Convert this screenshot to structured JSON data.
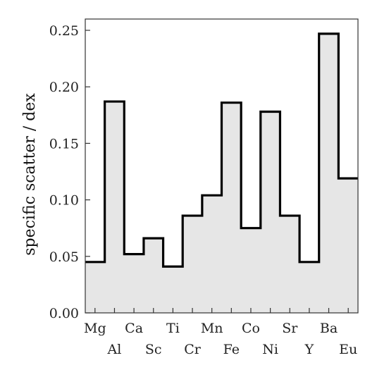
{
  "chart_data": {
    "type": "step",
    "categories": [
      "Mg",
      "Al",
      "Ca",
      "Sc",
      "Ti",
      "Cr",
      "Mn",
      "Fe",
      "Co",
      "Ni",
      "Sr",
      "Y",
      "Ba",
      "Eu"
    ],
    "values": [
      0.045,
      0.187,
      0.052,
      0.066,
      0.041,
      0.086,
      0.104,
      0.186,
      0.075,
      0.178,
      0.086,
      0.045,
      0.247,
      0.119
    ],
    "title": "",
    "xlabel": "",
    "ylabel": "specific scatter / dex",
    "ylim": [
      0,
      0.26
    ],
    "yticks": [
      "0.00",
      "0.05",
      "0.10",
      "0.15",
      "0.20",
      "0.25"
    ],
    "grid": false,
    "fill_color": "#e6e6e6",
    "line_color": "#000000"
  }
}
